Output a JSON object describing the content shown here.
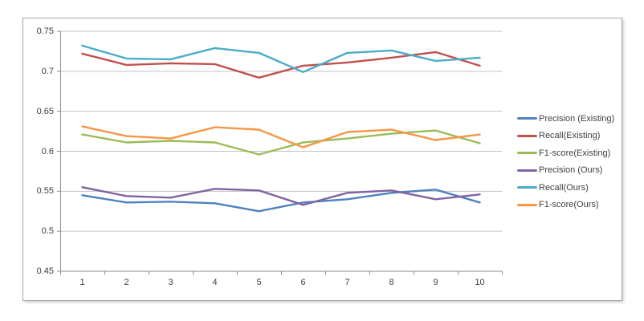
{
  "chart_data": {
    "type": "line",
    "title": "",
    "xlabel": "",
    "ylabel": "",
    "x": [
      "1",
      "2",
      "3",
      "4",
      "5",
      "6",
      "7",
      "8",
      "9",
      "10"
    ],
    "ylim": [
      0.45,
      0.75
    ],
    "yticks": [
      0.45,
      0.5,
      0.55,
      0.6,
      0.65,
      0.7,
      0.75
    ],
    "ytick_labels": [
      "0.45",
      "0.5",
      "0.55",
      "0.6",
      "0.65",
      "0.7",
      "0.75"
    ],
    "grid": true,
    "legend_position": "right",
    "series": [
      {
        "name": "Precision (Existing)",
        "color": "#4F81BD",
        "values": [
          0.545,
          0.536,
          0.537,
          0.535,
          0.525,
          0.536,
          0.54,
          0.548,
          0.552,
          0.536
        ]
      },
      {
        "name": "Recall(Existing)",
        "color": "#C0504D",
        "values": [
          0.722,
          0.708,
          0.71,
          0.709,
          0.692,
          0.707,
          0.711,
          0.717,
          0.724,
          0.707
        ]
      },
      {
        "name": "F1-score(Existing)",
        "color": "#9BBB59",
        "values": [
          0.621,
          0.611,
          0.613,
          0.611,
          0.596,
          0.611,
          0.616,
          0.622,
          0.626,
          0.61
        ]
      },
      {
        "name": "Precision (Ours)",
        "color": "#8064A2",
        "values": [
          0.555,
          0.544,
          0.542,
          0.553,
          0.551,
          0.533,
          0.548,
          0.551,
          0.54,
          0.546
        ]
      },
      {
        "name": "Recall(Ours)",
        "color": "#4BACC6",
        "values": [
          0.732,
          0.716,
          0.715,
          0.729,
          0.723,
          0.699,
          0.723,
          0.726,
          0.713,
          0.717
        ]
      },
      {
        "name": "F1-score(Ours)",
        "color": "#F79646",
        "values": [
          0.631,
          0.619,
          0.616,
          0.63,
          0.627,
          0.605,
          0.624,
          0.627,
          0.614,
          0.621
        ]
      }
    ]
  },
  "colors": {
    "gridline": "#C3C3C3",
    "axis": "#8C8C8C",
    "tick_label": "#3f3f3f",
    "frame_border": "#a6a6a6",
    "background": "#ffffff"
  }
}
